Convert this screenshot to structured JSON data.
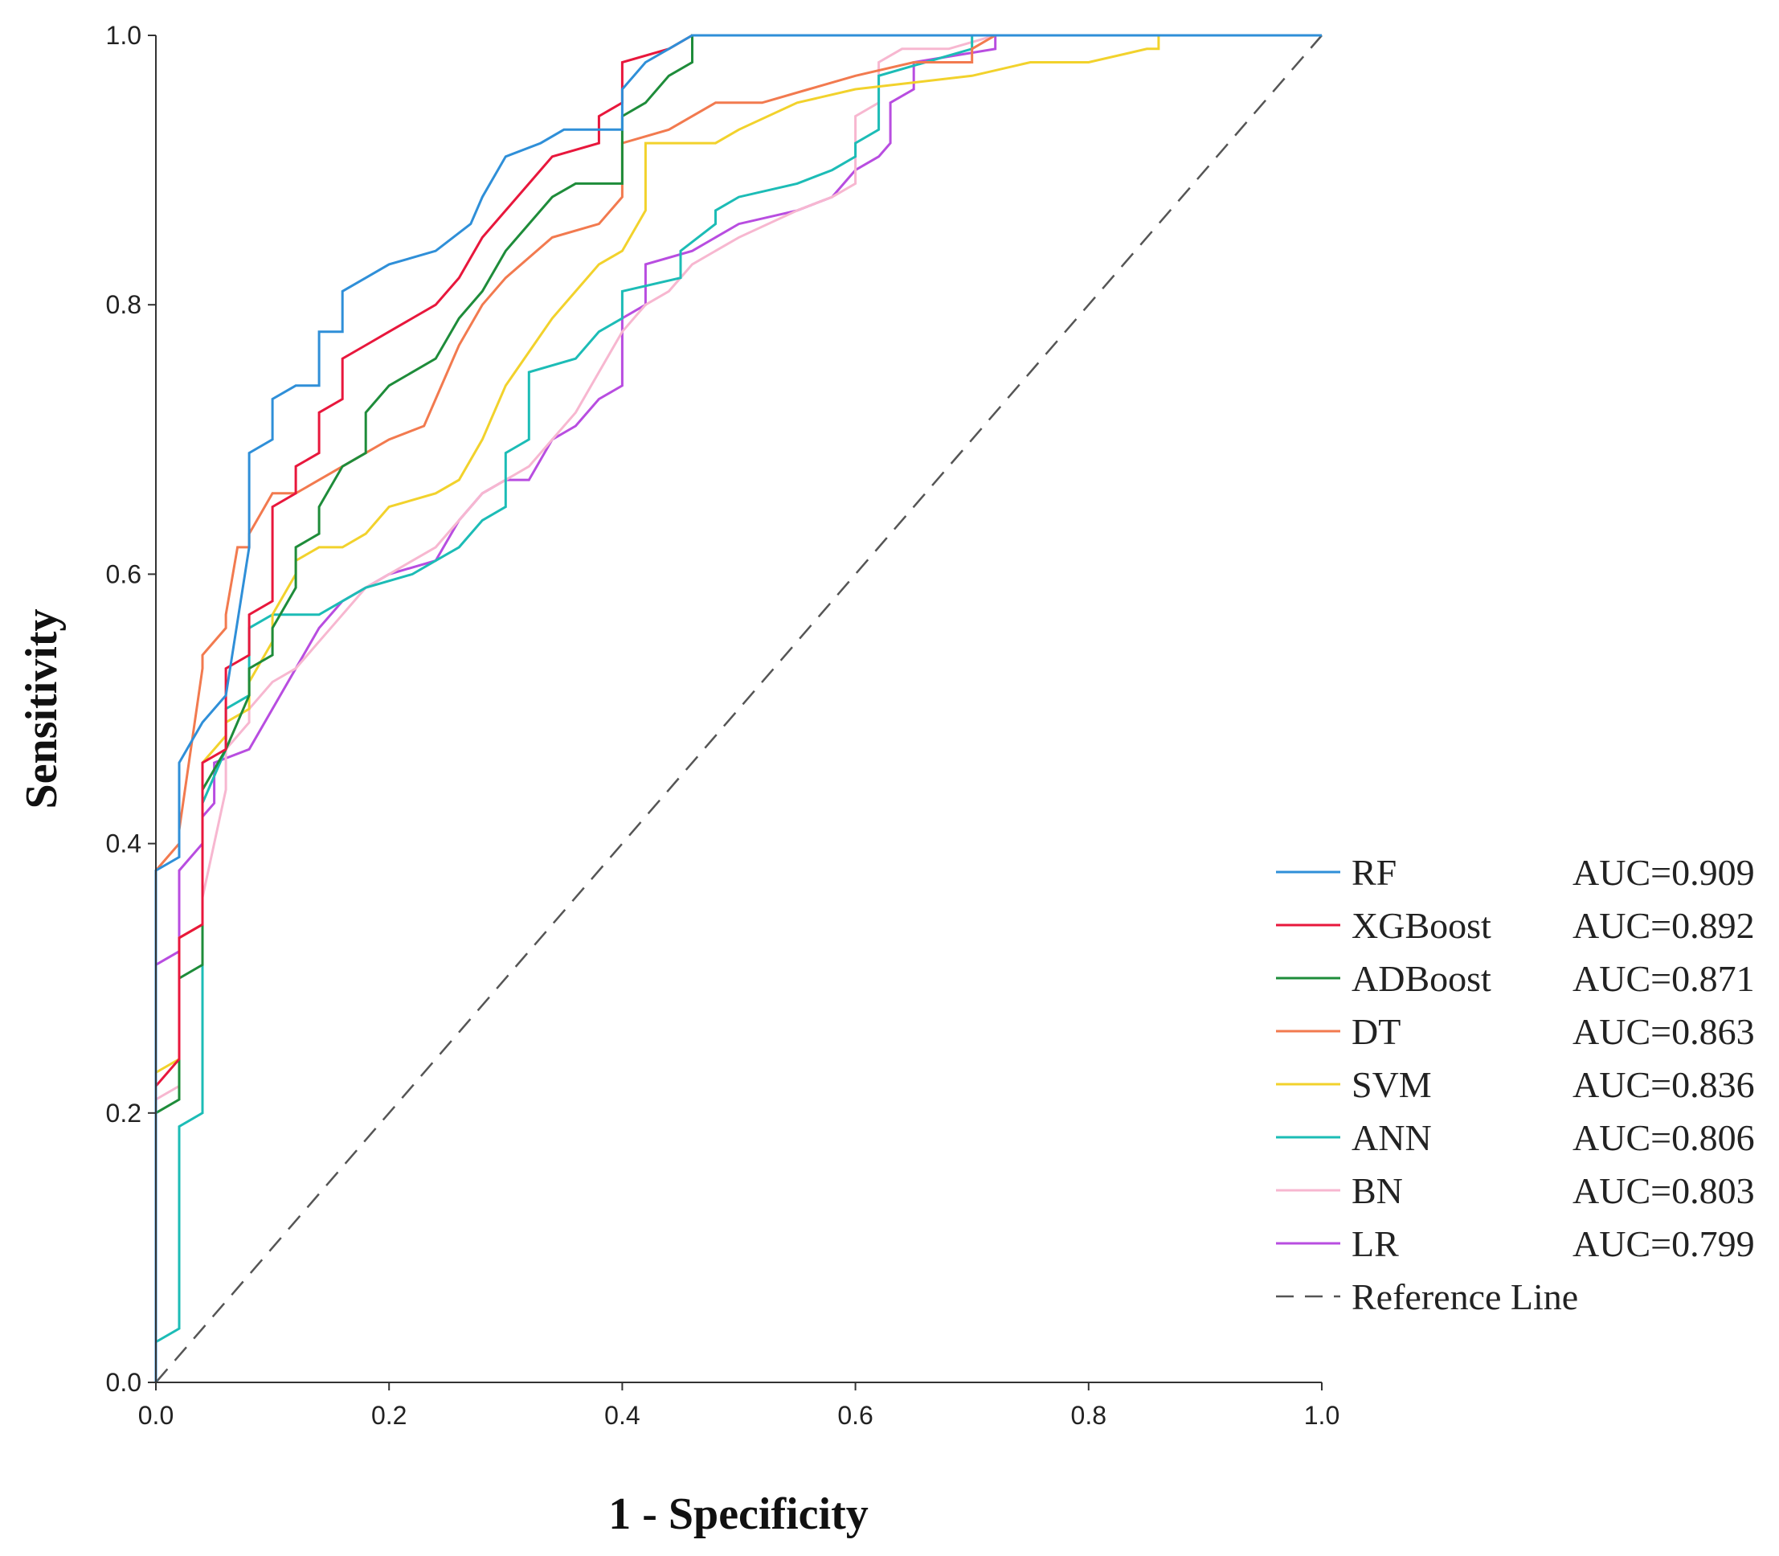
{
  "chart_data": {
    "type": "line",
    "title": "",
    "xlabel": "1 - Specificity",
    "ylabel": "Sensitivity",
    "xlim": [
      0,
      1
    ],
    "ylim": [
      0,
      1
    ],
    "x_ticks": [
      "0.0",
      "0.2",
      "0.4",
      "0.6",
      "0.8",
      "1.0"
    ],
    "y_ticks": [
      "0.0",
      "0.2",
      "0.4",
      "0.6",
      "0.8",
      "1.0"
    ],
    "grid": false,
    "legend_position": "bottom-right",
    "series": [
      {
        "name": "RF",
        "auc_label": "AUC=0.909",
        "color": "#2f8fd8",
        "x": [
          0,
          0,
          0.02,
          0.02,
          0.04,
          0.06,
          0.08,
          0.08,
          0.1,
          0.1,
          0.12,
          0.14,
          0.14,
          0.16,
          0.16,
          0.18,
          0.2,
          0.24,
          0.27,
          0.28,
          0.3,
          0.33,
          0.35,
          0.4,
          0.4,
          0.42,
          0.44,
          0.46,
          1.0
        ],
        "y": [
          0,
          0.38,
          0.39,
          0.46,
          0.49,
          0.51,
          0.62,
          0.69,
          0.7,
          0.73,
          0.74,
          0.74,
          0.78,
          0.78,
          0.81,
          0.82,
          0.83,
          0.84,
          0.86,
          0.88,
          0.91,
          0.92,
          0.93,
          0.93,
          0.96,
          0.98,
          0.99,
          1.0,
          1.0
        ]
      },
      {
        "name": "XGBoost",
        "auc_label": "AUC=0.892",
        "color": "#e8173c",
        "x": [
          0,
          0,
          0.02,
          0.02,
          0.04,
          0.04,
          0.06,
          0.06,
          0.08,
          0.08,
          0.1,
          0.1,
          0.12,
          0.12,
          0.14,
          0.14,
          0.16,
          0.16,
          0.18,
          0.2,
          0.24,
          0.26,
          0.28,
          0.3,
          0.32,
          0.34,
          0.38,
          0.38,
          0.4,
          0.4,
          0.44,
          0.46,
          1.0
        ],
        "y": [
          0,
          0.22,
          0.24,
          0.33,
          0.34,
          0.46,
          0.47,
          0.53,
          0.54,
          0.57,
          0.58,
          0.65,
          0.66,
          0.68,
          0.69,
          0.72,
          0.73,
          0.76,
          0.77,
          0.78,
          0.8,
          0.82,
          0.85,
          0.87,
          0.89,
          0.91,
          0.92,
          0.94,
          0.95,
          0.98,
          0.99,
          1.0,
          1.0
        ]
      },
      {
        "name": "ADBoost",
        "auc_label": "AUC=0.871",
        "color": "#1e8c3a",
        "x": [
          0,
          0,
          0.02,
          0.02,
          0.04,
          0.04,
          0.06,
          0.08,
          0.08,
          0.1,
          0.1,
          0.12,
          0.12,
          0.14,
          0.14,
          0.16,
          0.18,
          0.18,
          0.2,
          0.24,
          0.26,
          0.28,
          0.3,
          0.32,
          0.34,
          0.36,
          0.4,
          0.4,
          0.42,
          0.44,
          0.46,
          0.46,
          1.0
        ],
        "y": [
          0,
          0.2,
          0.21,
          0.3,
          0.31,
          0.44,
          0.47,
          0.51,
          0.53,
          0.54,
          0.56,
          0.59,
          0.62,
          0.63,
          0.65,
          0.68,
          0.69,
          0.72,
          0.74,
          0.76,
          0.79,
          0.81,
          0.84,
          0.86,
          0.88,
          0.89,
          0.89,
          0.94,
          0.95,
          0.97,
          0.98,
          1.0,
          1.0
        ]
      },
      {
        "name": "DT",
        "auc_label": "AUC=0.863",
        "color": "#f27a4f",
        "x": [
          0,
          0,
          0.02,
          0.02,
          0.04,
          0.04,
          0.06,
          0.06,
          0.07,
          0.08,
          0.08,
          0.1,
          0.12,
          0.14,
          0.16,
          0.18,
          0.2,
          0.23,
          0.24,
          0.26,
          0.28,
          0.3,
          0.34,
          0.38,
          0.4,
          0.4,
          0.44,
          0.48,
          0.52,
          0.56,
          0.6,
          0.65,
          0.7,
          0.7,
          0.72,
          1.0
        ],
        "y": [
          0,
          0.38,
          0.4,
          0.41,
          0.53,
          0.54,
          0.56,
          0.57,
          0.62,
          0.62,
          0.63,
          0.66,
          0.66,
          0.67,
          0.68,
          0.69,
          0.7,
          0.71,
          0.73,
          0.77,
          0.8,
          0.82,
          0.85,
          0.86,
          0.88,
          0.92,
          0.93,
          0.95,
          0.95,
          0.96,
          0.97,
          0.98,
          0.98,
          0.99,
          1.0,
          1.0
        ]
      },
      {
        "name": "SVM",
        "auc_label": "AUC=0.836",
        "color": "#f2d22c",
        "x": [
          0,
          0,
          0.02,
          0.02,
          0.04,
          0.04,
          0.06,
          0.06,
          0.08,
          0.08,
          0.1,
          0.1,
          0.12,
          0.12,
          0.14,
          0.16,
          0.18,
          0.2,
          0.24,
          0.26,
          0.28,
          0.3,
          0.34,
          0.36,
          0.38,
          0.4,
          0.42,
          0.42,
          0.48,
          0.5,
          0.55,
          0.6,
          0.7,
          0.75,
          0.8,
          0.85,
          0.86,
          0.86,
          1.0
        ],
        "y": [
          0,
          0.23,
          0.24,
          0.33,
          0.34,
          0.46,
          0.48,
          0.49,
          0.5,
          0.52,
          0.55,
          0.57,
          0.6,
          0.61,
          0.62,
          0.62,
          0.63,
          0.65,
          0.66,
          0.67,
          0.7,
          0.74,
          0.79,
          0.81,
          0.83,
          0.84,
          0.87,
          0.92,
          0.92,
          0.93,
          0.95,
          0.96,
          0.97,
          0.98,
          0.98,
          0.99,
          0.99,
          1.0,
          1.0
        ]
      },
      {
        "name": "ANN",
        "auc_label": "AUC=0.806",
        "color": "#1cbcb6",
        "x": [
          0,
          0,
          0.02,
          0.02,
          0.04,
          0.04,
          0.06,
          0.06,
          0.08,
          0.08,
          0.1,
          0.14,
          0.16,
          0.18,
          0.22,
          0.24,
          0.26,
          0.28,
          0.3,
          0.3,
          0.32,
          0.32,
          0.36,
          0.38,
          0.4,
          0.4,
          0.45,
          0.45,
          0.48,
          0.48,
          0.5,
          0.55,
          0.58,
          0.6,
          0.6,
          0.62,
          0.62,
          0.66,
          0.7,
          0.7,
          1.0
        ],
        "y": [
          0,
          0.03,
          0.04,
          0.19,
          0.2,
          0.43,
          0.47,
          0.5,
          0.51,
          0.56,
          0.57,
          0.57,
          0.58,
          0.59,
          0.6,
          0.61,
          0.62,
          0.64,
          0.65,
          0.69,
          0.7,
          0.75,
          0.76,
          0.78,
          0.79,
          0.81,
          0.82,
          0.84,
          0.86,
          0.87,
          0.88,
          0.89,
          0.9,
          0.91,
          0.92,
          0.93,
          0.97,
          0.98,
          0.99,
          1.0,
          1.0
        ]
      },
      {
        "name": "BN",
        "auc_label": "AUC=0.803",
        "color": "#f7b7d0",
        "x": [
          0,
          0,
          0.02,
          0.02,
          0.04,
          0.04,
          0.06,
          0.06,
          0.08,
          0.08,
          0.1,
          0.12,
          0.14,
          0.16,
          0.18,
          0.2,
          0.24,
          0.26,
          0.28,
          0.3,
          0.32,
          0.34,
          0.36,
          0.38,
          0.4,
          0.42,
          0.44,
          0.46,
          0.5,
          0.55,
          0.58,
          0.6,
          0.6,
          0.62,
          0.62,
          0.64,
          0.68,
          0.72,
          0.72,
          1.0
        ],
        "y": [
          0,
          0.21,
          0.22,
          0.33,
          0.34,
          0.36,
          0.44,
          0.47,
          0.49,
          0.5,
          0.52,
          0.53,
          0.55,
          0.57,
          0.59,
          0.6,
          0.62,
          0.64,
          0.66,
          0.67,
          0.68,
          0.7,
          0.72,
          0.75,
          0.78,
          0.8,
          0.81,
          0.83,
          0.85,
          0.87,
          0.88,
          0.89,
          0.94,
          0.95,
          0.98,
          0.99,
          0.99,
          1.0,
          1.0,
          1.0
        ]
      },
      {
        "name": "LR",
        "auc_label": "AUC=0.799",
        "color": "#b84de0",
        "x": [
          0,
          0,
          0.02,
          0.02,
          0.04,
          0.04,
          0.05,
          0.05,
          0.08,
          0.1,
          0.12,
          0.14,
          0.16,
          0.18,
          0.2,
          0.24,
          0.26,
          0.28,
          0.3,
          0.32,
          0.34,
          0.36,
          0.38,
          0.4,
          0.4,
          0.42,
          0.42,
          0.46,
          0.5,
          0.55,
          0.58,
          0.6,
          0.62,
          0.63,
          0.63,
          0.65,
          0.65,
          0.72,
          0.72,
          1.0
        ],
        "y": [
          0,
          0.31,
          0.32,
          0.38,
          0.4,
          0.42,
          0.43,
          0.46,
          0.47,
          0.5,
          0.53,
          0.56,
          0.58,
          0.59,
          0.6,
          0.61,
          0.64,
          0.66,
          0.67,
          0.67,
          0.7,
          0.71,
          0.73,
          0.74,
          0.79,
          0.8,
          0.83,
          0.84,
          0.86,
          0.87,
          0.88,
          0.9,
          0.91,
          0.92,
          0.95,
          0.96,
          0.98,
          0.99,
          1.0,
          1.0
        ]
      },
      {
        "name": "Reference Line",
        "auc_label": "",
        "color": "#555555",
        "dashed": true,
        "x": [
          0,
          1
        ],
        "y": [
          0,
          1
        ]
      }
    ]
  }
}
